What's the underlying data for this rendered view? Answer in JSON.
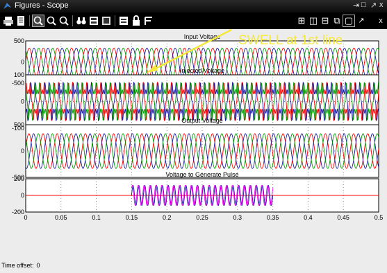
{
  "window": {
    "title": "Figures - Scope"
  },
  "toolbar": {
    "icons": [
      "print-icon",
      "print-preview-icon",
      "zoom-icon",
      "zoom-x-icon",
      "zoom-y-icon",
      "binoculars-icon",
      "save-axes-icon",
      "restore-axes-icon",
      "params-icon",
      "lock-icon",
      "signal-select-icon"
    ],
    "right_icons": [
      "layout-grid-icon",
      "layout-columns-icon",
      "layout-rows-icon",
      "undock-icon",
      "restore-icon",
      "pin-icon",
      "close-icon"
    ],
    "right_labels": [
      "⊞",
      "◫",
      "⊟",
      "⧉",
      "▢",
      "↗",
      "x"
    ]
  },
  "annotation": {
    "text": "SWELL at 1st line",
    "color": "#f5e83c"
  },
  "plots": [
    {
      "title": "Input Voltage",
      "yticks": [
        "500",
        "0",
        "-500"
      ]
    },
    {
      "title": "Injected Voltage",
      "yticks": [
        "100",
        "0",
        "-100"
      ]
    },
    {
      "title": "Output Voltage",
      "yticks": [
        "500",
        "0",
        "-500"
      ]
    },
    {
      "title": "Voltage to Generate Pulse",
      "yticks": [
        "200",
        "0",
        "-200"
      ]
    }
  ],
  "xaxis": {
    "ticks": [
      "0",
      "0.05",
      "0.1",
      "0.15",
      "0.2",
      "0.25",
      "0.3",
      "0.35",
      "0.4",
      "0.45",
      "0.5"
    ]
  },
  "status": {
    "label": "Time offset:",
    "value": "0"
  },
  "colors": {
    "phase_a": "#ff0000",
    "phase_b": "#1a1aa0",
    "phase_c": "#009c00",
    "pulse_magenta": "#ff00ff",
    "annotation_arrow": "#f5e83c"
  }
}
